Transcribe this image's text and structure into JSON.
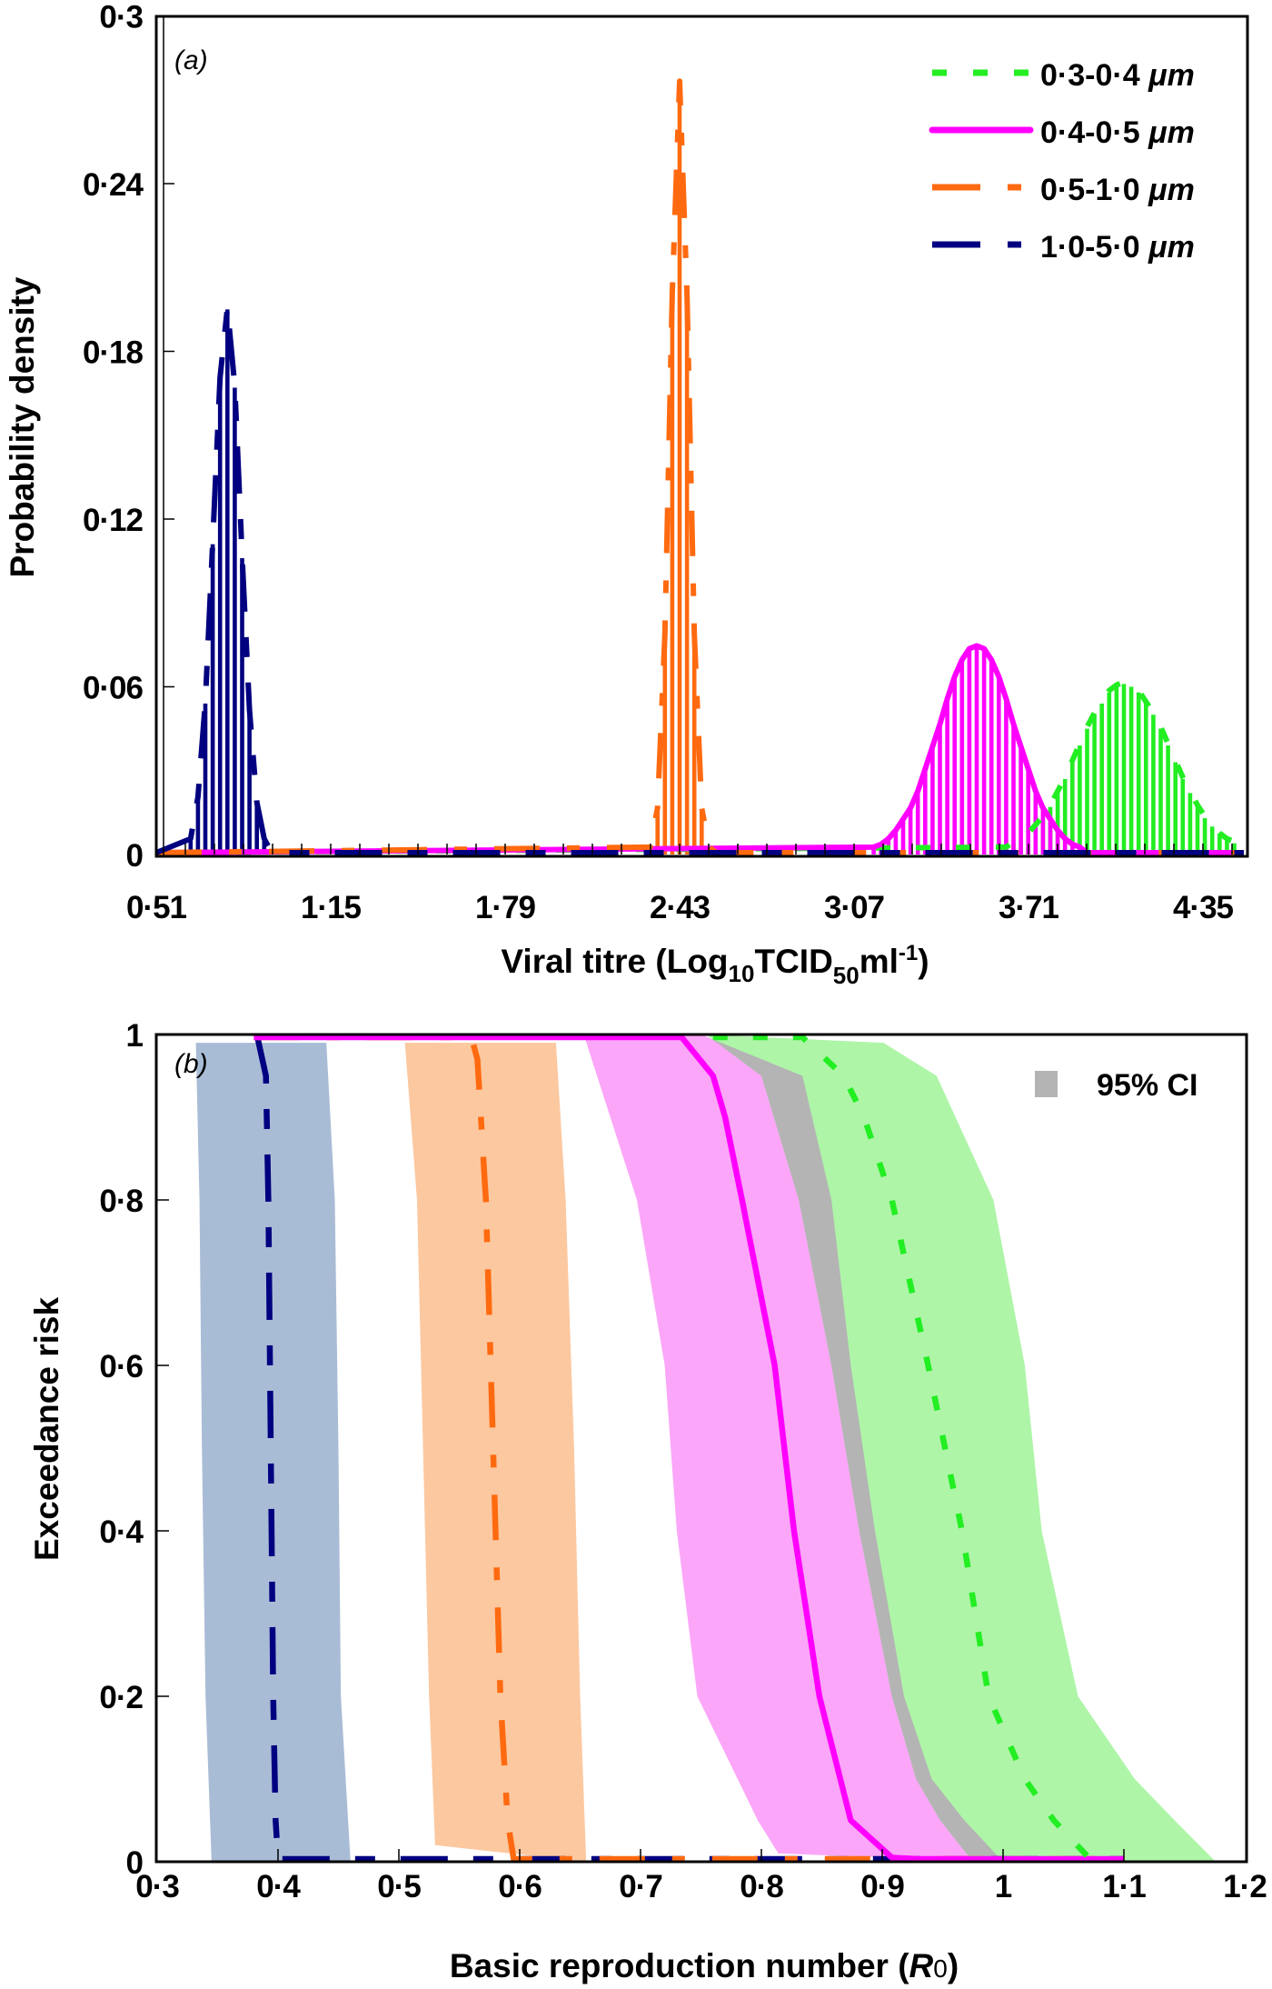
{
  "chart_data": [
    {
      "type": "bar",
      "panel_label": "(a)",
      "xlabel_parts": [
        "Viral titre (Log",
        "10",
        "TCID",
        "50",
        "ml",
        "-1",
        ")"
      ],
      "ylabel": "Probability density",
      "xlim": [
        0.51,
        4.51
      ],
      "ylim": [
        0,
        0.3
      ],
      "xticks": [
        "0·51",
        "1·15",
        "1·79",
        "2·43",
        "3·07",
        "3·71",
        "4·35"
      ],
      "xtick_values": [
        0.51,
        1.15,
        1.79,
        2.43,
        3.07,
        3.71,
        4.35
      ],
      "yticks": [
        "0",
        "0·06",
        "0·12",
        "0·18",
        "0·24",
        "0·3"
      ],
      "ytick_values": [
        0,
        0.06,
        0.12,
        0.18,
        0.24,
        0.3
      ],
      "legend_position": "top-right",
      "series": [
        {
          "name": "0·3-0·4",
          "unit": "μm",
          "color": "#22ee22",
          "style": "dotted",
          "bin_start": 3.628,
          "bin_width": 0.027,
          "values": [
            0.002,
            0.004,
            0.005,
            0.007,
            0.01,
            0.013,
            0.017,
            0.022,
            0.027,
            0.033,
            0.039,
            0.045,
            0.05,
            0.054,
            0.058,
            0.06,
            0.061,
            0.06,
            0.058,
            0.054,
            0.05,
            0.045,
            0.039,
            0.033,
            0.027,
            0.022,
            0.017,
            0.013,
            0.01,
            0.007,
            0.005,
            0.004
          ]
        },
        {
          "name": "0·4-0·5",
          "unit": "μm",
          "color": "#ff00ff",
          "style": "solid",
          "bin_start": 3.142,
          "bin_width": 0.027,
          "values": [
            0.002,
            0.003,
            0.005,
            0.008,
            0.012,
            0.016,
            0.022,
            0.03,
            0.038,
            0.046,
            0.055,
            0.063,
            0.069,
            0.073,
            0.074,
            0.073,
            0.069,
            0.063,
            0.055,
            0.046,
            0.038,
            0.03,
            0.022,
            0.016,
            0.012,
            0.008,
            0.005,
            0.003,
            0.002
          ]
        },
        {
          "name": "0·5-1·0",
          "unit": "μm",
          "color": "#ff6a10",
          "style": "dash-dot",
          "bin_start": 2.322,
          "bin_width": 0.027,
          "values": [
            0.002,
            0.016,
            0.078,
            0.2,
            0.276,
            0.2,
            0.078,
            0.016,
            0.002
          ]
        },
        {
          "name": "1·0-5·0",
          "unit": "μm",
          "color": "#000080",
          "style": "long-dash",
          "bin_start": 0.636,
          "bin_width": 0.027,
          "values": [
            0.005,
            0.02,
            0.054,
            0.111,
            0.17,
            0.195,
            0.167,
            0.106,
            0.051,
            0.018,
            0.005
          ]
        }
      ]
    },
    {
      "type": "line",
      "panel_label": "(b)",
      "xlabel_parts": [
        "Basic reproduction number (",
        "R",
        "0",
        ")"
      ],
      "ylabel": "Exceedance risk",
      "xlim": [
        0.3,
        1.2
      ],
      "ylim": [
        0,
        1
      ],
      "xticks": [
        "0·3",
        "0·4",
        "0·5",
        "0·6",
        "0·7",
        "0·8",
        "0·9",
        "1",
        "1·1",
        "1·2"
      ],
      "xtick_values": [
        0.3,
        0.4,
        0.5,
        0.6,
        0.7,
        0.8,
        0.9,
        1.0,
        1.1,
        1.2
      ],
      "yticks": [
        "0",
        "0·2",
        "0·4",
        "0·6",
        "0·8",
        "1"
      ],
      "ytick_values": [
        0,
        0.2,
        0.4,
        0.6,
        0.8,
        1
      ],
      "legend": {
        "label": "95% CI",
        "color": "#b4b4b4",
        "position": "top-right"
      },
      "series": [
        {
          "name": "1·0-5·0 μm",
          "color": "#000080",
          "band_color": "#a9bcd6",
          "style": "long-dash",
          "median": [
            [
              0.383,
              1
            ],
            [
              0.39,
              0.95
            ],
            [
              0.392,
              0.8
            ],
            [
              0.394,
              0.5
            ],
            [
              0.396,
              0.2
            ],
            [
              0.398,
              0.05
            ],
            [
              0.4,
              0
            ],
            [
              1.1,
              0
            ]
          ],
          "ci_lower": [
            [
              0.332,
              0.99
            ],
            [
              0.335,
              0.8
            ],
            [
              0.337,
              0.5
            ],
            [
              0.34,
              0.2
            ],
            [
              0.345,
              0
            ]
          ],
          "ci_upper": [
            [
              0.44,
              0.99
            ],
            [
              0.447,
              0.8
            ],
            [
              0.45,
              0.5
            ],
            [
              0.452,
              0.2
            ],
            [
              0.46,
              0
            ]
          ]
        },
        {
          "name": "0·5-1·0 μm",
          "color": "#ff6a10",
          "band_color": "#fcc8a0",
          "style": "dash-dot",
          "median": [
            [
              0.38,
              1
            ],
            [
              0.56,
              1
            ],
            [
              0.565,
              0.97
            ],
            [
              0.572,
              0.8
            ],
            [
              0.578,
              0.5
            ],
            [
              0.584,
              0.2
            ],
            [
              0.59,
              0.05
            ],
            [
              0.595,
              0
            ],
            [
              1.1,
              0
            ]
          ],
          "ci_lower": [
            [
              0.505,
              0.99
            ],
            [
              0.515,
              0.8
            ],
            [
              0.52,
              0.5
            ],
            [
              0.525,
              0.2
            ],
            [
              0.53,
              0.02
            ]
          ],
          "ci_upper": [
            [
              0.63,
              0.99
            ],
            [
              0.638,
              0.8
            ],
            [
              0.645,
              0.5
            ],
            [
              0.65,
              0.2
            ],
            [
              0.655,
              0
            ]
          ]
        },
        {
          "name": "0·4-0·5 μm",
          "color": "#ff00ff",
          "band_color": "#fba6f8",
          "style": "solid",
          "median": [
            [
              0.38,
              1
            ],
            [
              0.734,
              1
            ],
            [
              0.76,
              0.95
            ],
            [
              0.77,
              0.9
            ],
            [
              0.784,
              0.8
            ],
            [
              0.811,
              0.6
            ],
            [
              0.827,
              0.4
            ],
            [
              0.848,
              0.2
            ],
            [
              0.874,
              0.05
            ],
            [
              0.908,
              0.005
            ],
            [
              0.93,
              0
            ],
            [
              1.1,
              0
            ]
          ],
          "ci_lower": [
            [
              0.653,
              1
            ],
            [
              0.697,
              0.8
            ],
            [
              0.72,
              0.6
            ],
            [
              0.73,
              0.4
            ],
            [
              0.747,
              0.2
            ],
            [
              0.797,
              0.05
            ],
            [
              0.814,
              0.01
            ]
          ],
          "ci_upper": [
            [
              0.75,
              1
            ],
            [
              0.834,
              0.95
            ],
            [
              0.858,
              0.8
            ],
            [
              0.874,
              0.6
            ],
            [
              0.894,
              0.4
            ],
            [
              0.918,
              0.2
            ],
            [
              0.941,
              0.1
            ],
            [
              0.968,
              0.05
            ],
            [
              1.0,
              0
            ]
          ]
        },
        {
          "name": "0·3-0·4 μm",
          "color": "#22ee22",
          "band_color": "#aef5a8",
          "style": "dotted",
          "median": [
            [
              0.76,
              1
            ],
            [
              0.834,
              1
            ],
            [
              0.868,
              0.95
            ],
            [
              0.885,
              0.9
            ],
            [
              0.908,
              0.8
            ],
            [
              0.938,
              0.6
            ],
            [
              0.966,
              0.4
            ],
            [
              0.988,
              0.2
            ],
            [
              1.018,
              0.1
            ],
            [
              1.042,
              0.05
            ],
            [
              1.072,
              0
            ]
          ],
          "ci_lower": [
            [
              0.754,
              1
            ],
            [
              0.8,
              0.95
            ],
            [
              0.831,
              0.8
            ],
            [
              0.858,
              0.6
            ],
            [
              0.881,
              0.4
            ],
            [
              0.908,
              0.2
            ],
            [
              0.928,
              0.1
            ],
            [
              0.948,
              0.05
            ],
            [
              0.975,
              0
            ]
          ],
          "ci_upper": [
            [
              0.901,
              0.99
            ],
            [
              0.945,
              0.95
            ],
            [
              0.992,
              0.8
            ],
            [
              1.018,
              0.6
            ],
            [
              1.032,
              0.4
            ],
            [
              1.062,
              0.2
            ],
            [
              1.109,
              0.1
            ],
            [
              1.142,
              0.05
            ],
            [
              1.176,
              0
            ]
          ]
        }
      ]
    }
  ]
}
